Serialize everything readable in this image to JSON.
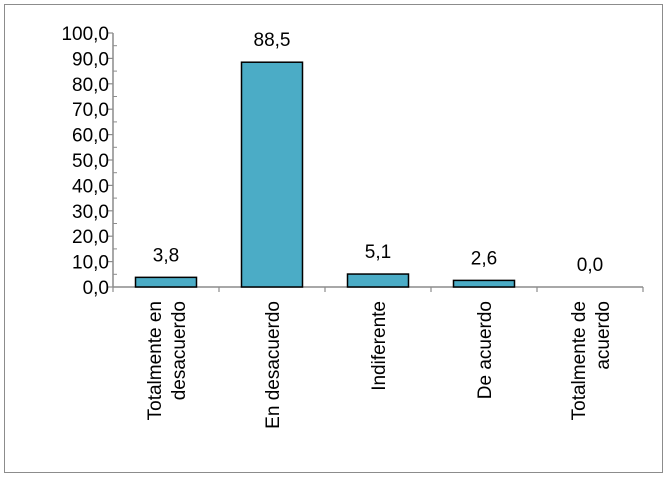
{
  "chart_data": {
    "type": "bar",
    "title": "",
    "xlabel": "",
    "ylabel": "",
    "categories": [
      [
        "Totalmente en",
        "desacuerdo"
      ],
      [
        "En desacuerdo"
      ],
      [
        "Indiferente"
      ],
      [
        "De acuerdo"
      ],
      [
        "Totalmente de",
        "acuerdo"
      ]
    ],
    "values": [
      3.8,
      88.5,
      5.1,
      2.6,
      0.0
    ],
    "data_labels": [
      "3,8",
      "88,5",
      "5,1",
      "2,6",
      "0,0"
    ],
    "ylim": [
      0,
      100
    ],
    "yticks": [
      0,
      10,
      20,
      30,
      40,
      50,
      60,
      70,
      80,
      90,
      100
    ],
    "ytick_labels": [
      "0,0",
      "10,0",
      "20,0",
      "30,0",
      "40,0",
      "50,0",
      "60,0",
      "70,0",
      "80,0",
      "90,0",
      "100,0"
    ],
    "grid": false,
    "legend": "none",
    "bar_color": "#4bacc6",
    "bar_edge_color": "#000000"
  }
}
